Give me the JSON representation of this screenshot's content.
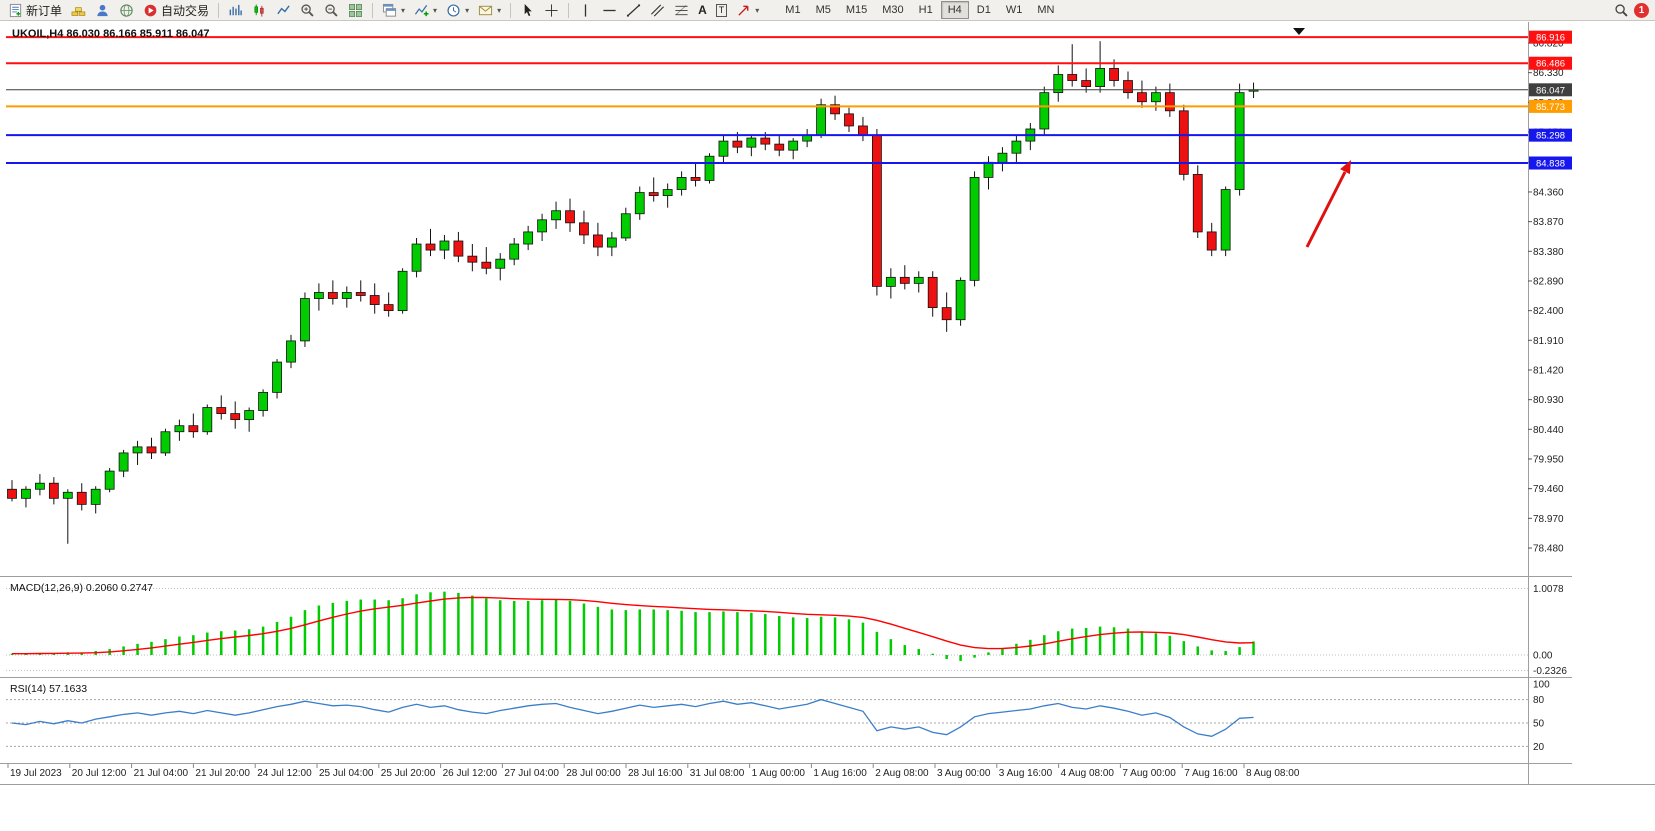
{
  "toolbar": {
    "new_order": "新订单",
    "auto_trading": "自动交易",
    "text_tool": "A",
    "textbox_tool": "T",
    "timeframes": [
      "M1",
      "M5",
      "M15",
      "M30",
      "H1",
      "H4",
      "D1",
      "W1",
      "MN"
    ],
    "active_timeframe": "H4",
    "notification_badge": "1"
  },
  "chart_data": {
    "type": "candlestick",
    "symbol": "UKOIL",
    "timeframe": "H4",
    "header": "UKOIL,H4 86.030 86.166 85.911 86.047",
    "ohlc_last": {
      "open": "86.030",
      "high": "86.166",
      "low": "85.911",
      "close": "86.047"
    },
    "up_color": "#00CC00",
    "down_color": "#EE1111",
    "price_ticks": [
      "86.820",
      "86.330",
      "85.840",
      "85.350",
      "84.850",
      "84.360",
      "83.870",
      "83.380",
      "82.890",
      "82.400",
      "81.910",
      "81.420",
      "80.930",
      "80.440",
      "79.950",
      "79.460",
      "78.970",
      "78.480"
    ],
    "x_labels": [
      "19 Jul 2023",
      "20 Jul 12:00",
      "21 Jul 04:00",
      "21 Jul 20:00",
      "24 Jul 12:00",
      "25 Jul 04:00",
      "25 Jul 20:00",
      "26 Jul 12:00",
      "27 Jul 04:00",
      "28 Jul 00:00",
      "28 Jul 16:00",
      "31 Jul 08:00",
      "1 Aug 00:00",
      "1 Aug 16:00",
      "2 Aug 08:00",
      "3 Aug 00:00",
      "3 Aug 16:00",
      "4 Aug 08:00",
      "7 Aug 00:00",
      "7 Aug 16:00",
      "8 Aug 08:00"
    ],
    "lines": [
      {
        "label": "86.916",
        "price": 86.916,
        "color": "#FF0F0F",
        "name": "resistance-line-1"
      },
      {
        "label": "86.486",
        "price": 86.486,
        "color": "#FF0F0F",
        "name": "resistance-line-2"
      },
      {
        "label": "86.047",
        "price": 86.047,
        "color": "#3F3F3F",
        "name": "current-price-line"
      },
      {
        "label": "85.773",
        "price": 85.773,
        "color": "#FF9C00",
        "name": "pivot-line"
      },
      {
        "label": "85.298",
        "price": 85.298,
        "color": "#1616EE",
        "name": "support-line-1"
      },
      {
        "label": "84.838",
        "price": 84.838,
        "color": "#1616EE",
        "name": "support-line-2"
      }
    ],
    "ohlc": [
      [
        79.45,
        79.6,
        79.25,
        79.3
      ],
      [
        79.3,
        79.5,
        79.15,
        79.45
      ],
      [
        79.45,
        79.7,
        79.35,
        79.55
      ],
      [
        79.55,
        79.65,
        79.2,
        79.3
      ],
      [
        79.3,
        79.45,
        78.55,
        79.4
      ],
      [
        79.4,
        79.55,
        79.1,
        79.2
      ],
      [
        79.2,
        79.5,
        79.05,
        79.45
      ],
      [
        79.45,
        79.8,
        79.4,
        79.75
      ],
      [
        79.75,
        80.1,
        79.65,
        80.05
      ],
      [
        80.05,
        80.25,
        79.85,
        80.15
      ],
      [
        80.15,
        80.3,
        79.95,
        80.05
      ],
      [
        80.05,
        80.45,
        80.0,
        80.4
      ],
      [
        80.4,
        80.6,
        80.25,
        80.5
      ],
      [
        80.5,
        80.7,
        80.3,
        80.4
      ],
      [
        80.4,
        80.85,
        80.35,
        80.8
      ],
      [
        80.8,
        81.0,
        80.6,
        80.7
      ],
      [
        80.7,
        80.9,
        80.45,
        80.6
      ],
      [
        80.6,
        80.8,
        80.4,
        80.75
      ],
      [
        80.75,
        81.1,
        80.65,
        81.05
      ],
      [
        81.05,
        81.6,
        80.95,
        81.55
      ],
      [
        81.55,
        82.0,
        81.45,
        81.9
      ],
      [
        81.9,
        82.7,
        81.8,
        82.6
      ],
      [
        82.6,
        82.85,
        82.4,
        82.7
      ],
      [
        82.7,
        82.9,
        82.5,
        82.6
      ],
      [
        82.6,
        82.8,
        82.45,
        82.7
      ],
      [
        82.7,
        82.9,
        82.55,
        82.65
      ],
      [
        82.65,
        82.85,
        82.35,
        82.5
      ],
      [
        82.5,
        82.7,
        82.3,
        82.4
      ],
      [
        82.4,
        83.1,
        82.35,
        83.05
      ],
      [
        83.05,
        83.6,
        82.95,
        83.5
      ],
      [
        83.5,
        83.75,
        83.3,
        83.4
      ],
      [
        83.4,
        83.65,
        83.25,
        83.55
      ],
      [
        83.55,
        83.7,
        83.2,
        83.3
      ],
      [
        83.3,
        83.5,
        83.05,
        83.2
      ],
      [
        83.2,
        83.45,
        83.0,
        83.1
      ],
      [
        83.1,
        83.35,
        82.9,
        83.25
      ],
      [
        83.25,
        83.6,
        83.15,
        83.5
      ],
      [
        83.5,
        83.8,
        83.4,
        83.7
      ],
      [
        83.7,
        84.0,
        83.55,
        83.9
      ],
      [
        83.9,
        84.2,
        83.75,
        84.05
      ],
      [
        84.05,
        84.25,
        83.7,
        83.85
      ],
      [
        83.85,
        84.05,
        83.5,
        83.65
      ],
      [
        83.65,
        83.85,
        83.3,
        83.45
      ],
      [
        83.45,
        83.7,
        83.3,
        83.6
      ],
      [
        83.6,
        84.1,
        83.55,
        84.0
      ],
      [
        84.0,
        84.45,
        83.9,
        84.35
      ],
      [
        84.35,
        84.6,
        84.2,
        84.3
      ],
      [
        84.3,
        84.5,
        84.1,
        84.4
      ],
      [
        84.4,
        84.7,
        84.3,
        84.6
      ],
      [
        84.6,
        84.85,
        84.45,
        84.55
      ],
      [
        84.55,
        85.0,
        84.5,
        84.95
      ],
      [
        84.95,
        85.3,
        84.85,
        85.2
      ],
      [
        85.2,
        85.35,
        85.0,
        85.1
      ],
      [
        85.1,
        85.3,
        84.95,
        85.25
      ],
      [
        85.25,
        85.35,
        85.05,
        85.15
      ],
      [
        85.15,
        85.3,
        84.95,
        85.05
      ],
      [
        85.05,
        85.25,
        84.9,
        85.2
      ],
      [
        85.2,
        85.4,
        85.1,
        85.3
      ],
      [
        85.3,
        85.9,
        85.25,
        85.8
      ],
      [
        85.8,
        85.95,
        85.55,
        85.65
      ],
      [
        85.65,
        85.75,
        85.35,
        85.45
      ],
      [
        85.45,
        85.6,
        85.2,
        85.3
      ],
      [
        85.3,
        85.4,
        82.65,
        82.8
      ],
      [
        82.8,
        83.1,
        82.6,
        82.95
      ],
      [
        82.95,
        83.15,
        82.75,
        82.85
      ],
      [
        82.85,
        83.05,
        82.7,
        82.95
      ],
      [
        82.95,
        83.05,
        82.3,
        82.45
      ],
      [
        82.45,
        82.7,
        82.05,
        82.25
      ],
      [
        82.25,
        82.95,
        82.15,
        82.9
      ],
      [
        82.9,
        84.7,
        82.8,
        84.6
      ],
      [
        84.6,
        84.95,
        84.4,
        84.85
      ],
      [
        84.85,
        85.1,
        84.7,
        85.0
      ],
      [
        85.0,
        85.3,
        84.85,
        85.2
      ],
      [
        85.2,
        85.5,
        85.05,
        85.4
      ],
      [
        85.4,
        86.1,
        85.3,
        86.0
      ],
      [
        86.0,
        86.45,
        85.85,
        86.3
      ],
      [
        86.3,
        86.8,
        86.1,
        86.2
      ],
      [
        86.2,
        86.4,
        86.0,
        86.1
      ],
      [
        86.1,
        86.85,
        86.0,
        86.4
      ],
      [
        86.4,
        86.55,
        86.1,
        86.2
      ],
      [
        86.2,
        86.35,
        85.9,
        86.0
      ],
      [
        86.0,
        86.2,
        85.75,
        85.85
      ],
      [
        85.85,
        86.1,
        85.7,
        86.0
      ],
      [
        86.0,
        86.15,
        85.6,
        85.7
      ],
      [
        85.7,
        85.8,
        84.55,
        84.65
      ],
      [
        84.65,
        84.8,
        83.6,
        83.7
      ],
      [
        83.7,
        83.85,
        83.3,
        83.4
      ],
      [
        83.4,
        84.45,
        83.3,
        84.4
      ],
      [
        84.4,
        86.15,
        84.3,
        86.0
      ],
      [
        86.03,
        86.166,
        85.911,
        86.047
      ]
    ],
    "indicators": {
      "macd": {
        "label": "MACD(12,26,9) 0.2060 0.2747",
        "macd_current": "0.2060",
        "signal_current": "0.2747",
        "axis": [
          "1.0078",
          "0.00",
          "-0.2326"
        ],
        "histogram_color": "#00CC00",
        "signal_color": "#FF0000",
        "histogram": [
          0.02,
          0.02,
          0.03,
          0.03,
          0.04,
          0.04,
          0.06,
          0.09,
          0.13,
          0.17,
          0.2,
          0.24,
          0.28,
          0.3,
          0.34,
          0.36,
          0.37,
          0.39,
          0.43,
          0.5,
          0.58,
          0.68,
          0.75,
          0.79,
          0.82,
          0.84,
          0.84,
          0.83,
          0.86,
          0.92,
          0.95,
          0.96,
          0.94,
          0.9,
          0.86,
          0.83,
          0.82,
          0.82,
          0.83,
          0.84,
          0.82,
          0.78,
          0.73,
          0.69,
          0.68,
          0.69,
          0.69,
          0.68,
          0.67,
          0.65,
          0.65,
          0.66,
          0.65,
          0.64,
          0.62,
          0.59,
          0.57,
          0.56,
          0.58,
          0.57,
          0.54,
          0.49,
          0.35,
          0.24,
          0.15,
          0.09,
          0.02,
          -0.06,
          -0.09,
          -0.04,
          0.04,
          0.1,
          0.17,
          0.23,
          0.3,
          0.36,
          0.4,
          0.41,
          0.43,
          0.42,
          0.4,
          0.36,
          0.33,
          0.29,
          0.21,
          0.13,
          0.07,
          0.06,
          0.12,
          0.206
        ]
      },
      "rsi": {
        "label": "RSI(14) 57.1633",
        "current": "57.1633",
        "axis": [
          "100",
          "80",
          "50",
          "20"
        ],
        "levels": [
          80,
          50,
          20
        ],
        "line_color": "#3B7EC8",
        "values": [
          50,
          48,
          52,
          49,
          53,
          50,
          55,
          58,
          61,
          63,
          60,
          63,
          65,
          62,
          66,
          63,
          60,
          63,
          67,
          71,
          74,
          78,
          75,
          72,
          73,
          71,
          67,
          64,
          70,
          74,
          70,
          72,
          67,
          64,
          62,
          66,
          69,
          72,
          74,
          75,
          70,
          66,
          62,
          65,
          69,
          73,
          70,
          72,
          74,
          71,
          75,
          78,
          74,
          76,
          72,
          68,
          71,
          74,
          80,
          75,
          70,
          65,
          40,
          45,
          42,
          45,
          38,
          35,
          45,
          58,
          62,
          64,
          66,
          68,
          72,
          75,
          70,
          68,
          72,
          69,
          65,
          60,
          63,
          57,
          45,
          36,
          33,
          42,
          56,
          57.16
        ]
      }
    },
    "annotation": {
      "type": "arrow-up",
      "color": "#E01010"
    }
  }
}
